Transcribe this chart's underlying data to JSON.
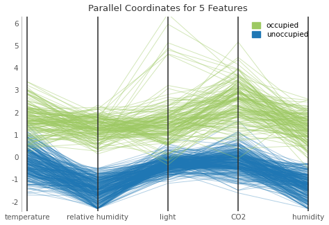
{
  "title": "Parallel Coordinates for 5 Features",
  "features": [
    "temperature",
    "relative humidity",
    "light",
    "CO2",
    "humidity"
  ],
  "ylim": [
    -2.4,
    6.3
  ],
  "yticks": [
    -2,
    -1,
    0,
    1,
    2,
    3,
    4,
    5,
    6
  ],
  "occupied_color": "#9dc962",
  "unoccupied_color": "#1f77b4",
  "occupied_alpha": 0.45,
  "unoccupied_alpha": 0.35,
  "line_width": 0.7,
  "n_occupied": 150,
  "n_unoccupied": 300,
  "background_color": "#ffffff",
  "axes_background": "#ffffff",
  "random_seed": 7
}
